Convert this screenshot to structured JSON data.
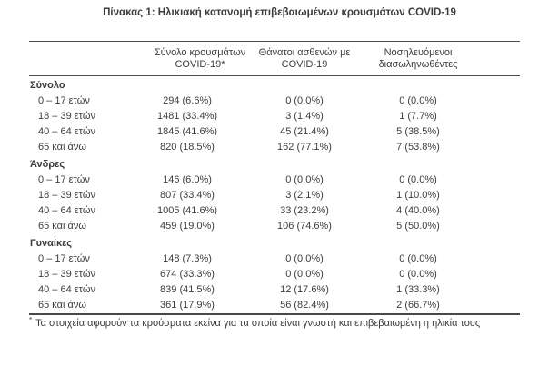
{
  "page": {
    "title": "Πίνακας 1: Ηλικιακή κατανομή επιβεβαιωμένων κρουσμάτων COVID-19"
  },
  "table": {
    "col_headers": [
      {
        "line1": "Σύνολο κρουσμάτων",
        "line2": "COVID-19*"
      },
      {
        "line1": "Θάνατοι ασθενών με",
        "line2": "COVID-19"
      },
      {
        "line1": "Νοσηλευόμενοι",
        "line2": "διασωληνωθέντες"
      }
    ],
    "sections": [
      {
        "label": "Σύνολο",
        "rows": [
          {
            "label": "0 – 17 ετών",
            "cases": "294 (6.6%)",
            "deaths": "0 (0.0%)",
            "intubated": "0 (0.0%)"
          },
          {
            "label": "18 – 39 ετών",
            "cases": "1481 (33.4%)",
            "deaths": "3 (1.4%)",
            "intubated": "1 (7.7%)"
          },
          {
            "label": "40 – 64 ετών",
            "cases": "1845 (41.6%)",
            "deaths": "45 (21.4%)",
            "intubated": "5 (38.5%)"
          },
          {
            "label": "65 και άνω",
            "cases": "820 (18.5%)",
            "deaths": "162 (77.1%)",
            "intubated": "7 (53.8%)"
          }
        ]
      },
      {
        "label": "Άνδρες",
        "rows": [
          {
            "label": "0 – 17 ετών",
            "cases": "146 (6.0%)",
            "deaths": "0 (0.0%)",
            "intubated": "0 (0.0%)"
          },
          {
            "label": "18 – 39 ετών",
            "cases": "807 (33.4%)",
            "deaths": "3 (2.1%)",
            "intubated": "1 (10.0%)"
          },
          {
            "label": "40 – 64 ετών",
            "cases": "1005 (41.6%)",
            "deaths": "33 (23.2%)",
            "intubated": "4 (40.0%)"
          },
          {
            "label": "65 και άνω",
            "cases": "459 (19.0%)",
            "deaths": "106 (74.6%)",
            "intubated": "5 (50.0%)"
          }
        ]
      },
      {
        "label": "Γυναίκες",
        "rows": [
          {
            "label": "0 – 17 ετών",
            "cases": "148 (7.3%)",
            "deaths": "0 (0.0%)",
            "intubated": "0 (0.0%)"
          },
          {
            "label": "18 – 39 ετών",
            "cases": "674 (33.3%)",
            "deaths": "0 (0.0%)",
            "intubated": "0 (0.0%)"
          },
          {
            "label": "40 – 64 ετών",
            "cases": "839 (41.5%)",
            "deaths": "12 (17.6%)",
            "intubated": "1 (33.3%)"
          },
          {
            "label": "65 και άνω",
            "cases": "361 (17.9%)",
            "deaths": "56 (82.4%)",
            "intubated": "2 (66.7%)"
          }
        ]
      }
    ],
    "footnote": {
      "marker": "*",
      "text": "Τα στοιχεία αφορούν τα κρούσματα εκείνα για τα οποία είναι γνωστή και επιβεβαιωμένη η ηλικία τους"
    }
  },
  "colors": {
    "text": "#3c3c3e",
    "rule": "#4c4c4e",
    "background": "#ffffff"
  }
}
